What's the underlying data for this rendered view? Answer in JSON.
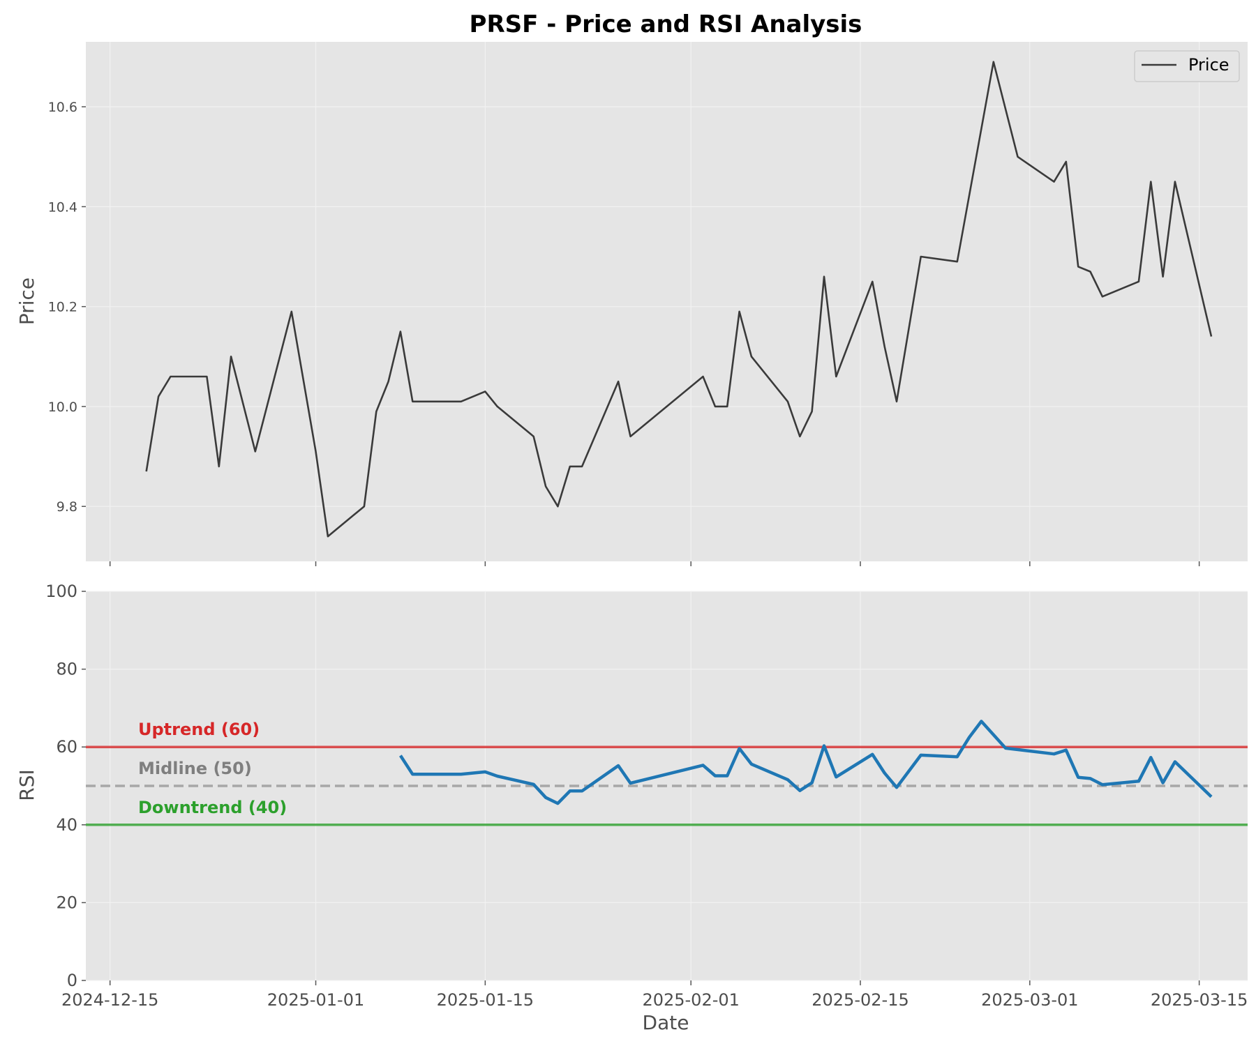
{
  "chart_data": [
    {
      "type": "line",
      "title": "PRSF - Price and RSI Analysis",
      "xlabel": "",
      "ylabel": "Price",
      "ylim": [
        9.69,
        10.73
      ],
      "yticks": [
        9.8,
        10.0,
        10.2,
        10.4,
        10.6
      ],
      "grid": true,
      "legend": {
        "position": "top-right",
        "entries": [
          "Price"
        ]
      },
      "series": [
        {
          "name": "Price",
          "color": "#3a3a3a",
          "points": [
            [
              "2024-12-18",
              9.87
            ],
            [
              "2024-12-19",
              10.02
            ],
            [
              "2024-12-20",
              10.06
            ],
            [
              "2024-12-23",
              10.06
            ],
            [
              "2024-12-24",
              9.88
            ],
            [
              "2024-12-25",
              10.1
            ],
            [
              "2024-12-27",
              9.91
            ],
            [
              "2024-12-30",
              10.19
            ],
            [
              "2025-01-01",
              9.91
            ],
            [
              "2025-01-02",
              9.74
            ],
            [
              "2025-01-05",
              9.8
            ],
            [
              "2025-01-06",
              9.99
            ],
            [
              "2025-01-07",
              10.05
            ],
            [
              "2025-01-08",
              10.15
            ],
            [
              "2025-01-09",
              10.01
            ],
            [
              "2025-01-13",
              10.01
            ],
            [
              "2025-01-15",
              10.03
            ],
            [
              "2025-01-16",
              10.0
            ],
            [
              "2025-01-19",
              9.94
            ],
            [
              "2025-01-20",
              9.84
            ],
            [
              "2025-01-21",
              9.8
            ],
            [
              "2025-01-22",
              9.88
            ],
            [
              "2025-01-23",
              9.88
            ],
            [
              "2025-01-26",
              10.05
            ],
            [
              "2025-01-27",
              9.94
            ],
            [
              "2025-02-02",
              10.06
            ],
            [
              "2025-02-03",
              10.0
            ],
            [
              "2025-02-04",
              10.0
            ],
            [
              "2025-02-05",
              10.19
            ],
            [
              "2025-02-06",
              10.1
            ],
            [
              "2025-02-09",
              10.01
            ],
            [
              "2025-02-10",
              9.94
            ],
            [
              "2025-02-11",
              9.99
            ],
            [
              "2025-02-12",
              10.26
            ],
            [
              "2025-02-13",
              10.06
            ],
            [
              "2025-02-16",
              10.25
            ],
            [
              "2025-02-17",
              10.12
            ],
            [
              "2025-02-18",
              10.01
            ],
            [
              "2025-02-20",
              10.3
            ],
            [
              "2025-02-23",
              10.29
            ],
            [
              "2025-02-26",
              10.69
            ],
            [
              "2025-02-28",
              10.5
            ],
            [
              "2025-03-03",
              10.45
            ],
            [
              "2025-03-04",
              10.49
            ],
            [
              "2025-03-05",
              10.28
            ],
            [
              "2025-03-06",
              10.27
            ],
            [
              "2025-03-07",
              10.22
            ],
            [
              "2025-03-10",
              10.25
            ],
            [
              "2025-03-11",
              10.45
            ],
            [
              "2025-03-12",
              10.26
            ],
            [
              "2025-03-13",
              10.45
            ],
            [
              "2025-03-16",
              10.14
            ]
          ]
        }
      ]
    },
    {
      "type": "line",
      "title": "",
      "xlabel": "Date",
      "ylabel": "RSI",
      "ylim": [
        0,
        100
      ],
      "yticks": [
        0,
        20,
        40,
        60,
        80,
        100
      ],
      "xlim": [
        "2024-12-13",
        "2025-03-19"
      ],
      "xticks": [
        "2024-12-15",
        "2025-01-01",
        "2025-01-15",
        "2025-02-01",
        "2025-02-15",
        "2025-03-01",
        "2025-03-15"
      ],
      "grid": true,
      "reference_lines": [
        {
          "label": "Uptrend (60)",
          "value": 60,
          "color": "#d62728",
          "style": "solid"
        },
        {
          "label": "Midline (50)",
          "value": 50,
          "color": "#7f7f7f",
          "style": "dashed"
        },
        {
          "label": "Downtrend (40)",
          "value": 40,
          "color": "#2ca02c",
          "style": "solid"
        }
      ],
      "series": [
        {
          "color": "#1f77b4",
          "points": [
            [
              "2025-01-08",
              57.8
            ],
            [
              "2025-01-09",
              53.0
            ],
            [
              "2025-01-13",
              53.0
            ],
            [
              "2025-01-15",
              53.6
            ],
            [
              "2025-01-16",
              52.5
            ],
            [
              "2025-01-19",
              50.4
            ],
            [
              "2025-01-20",
              47.0
            ],
            [
              "2025-01-21",
              45.5
            ],
            [
              "2025-01-22",
              48.7
            ],
            [
              "2025-01-23",
              48.7
            ],
            [
              "2025-01-26",
              55.2
            ],
            [
              "2025-01-27",
              50.7
            ],
            [
              "2025-02-02",
              55.3
            ],
            [
              "2025-02-03",
              52.6
            ],
            [
              "2025-02-04",
              52.6
            ],
            [
              "2025-02-05",
              59.6
            ],
            [
              "2025-02-06",
              55.6
            ],
            [
              "2025-02-09",
              51.6
            ],
            [
              "2025-02-10",
              48.8
            ],
            [
              "2025-02-11",
              50.8
            ],
            [
              "2025-02-12",
              60.3
            ],
            [
              "2025-02-13",
              52.3
            ],
            [
              "2025-02-16",
              58.1
            ],
            [
              "2025-02-17",
              53.3
            ],
            [
              "2025-02-18",
              49.6
            ],
            [
              "2025-02-20",
              57.9
            ],
            [
              "2025-02-23",
              57.5
            ],
            [
              "2025-02-24",
              62.5
            ],
            [
              "2025-02-25",
              66.6
            ],
            [
              "2025-02-27",
              59.7
            ],
            [
              "2025-03-03",
              58.2
            ],
            [
              "2025-03-04",
              59.2
            ],
            [
              "2025-03-05",
              52.2
            ],
            [
              "2025-03-06",
              51.9
            ],
            [
              "2025-03-07",
              50.3
            ],
            [
              "2025-03-10",
              51.2
            ],
            [
              "2025-03-11",
              57.3
            ],
            [
              "2025-03-12",
              50.8
            ],
            [
              "2025-03-13",
              56.2
            ],
            [
              "2025-03-16",
              47.2
            ]
          ]
        }
      ]
    }
  ]
}
